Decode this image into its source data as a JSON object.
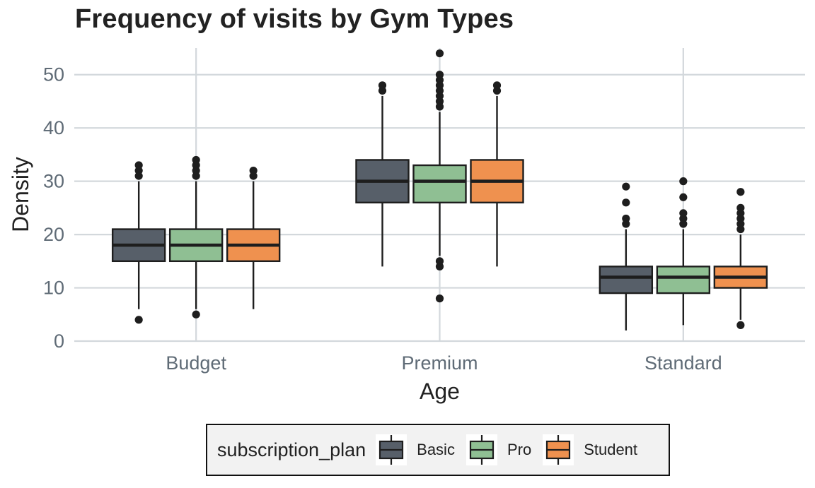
{
  "chart_data": {
    "type": "box",
    "title": "Frequency of visits by Gym Types",
    "xlabel": "Age",
    "ylabel": "Density",
    "categories": [
      "Budget",
      "Premium",
      "Standard"
    ],
    "y_ticks": [
      0,
      10,
      20,
      30,
      40,
      50
    ],
    "ylim": [
      0,
      55
    ],
    "grid": true,
    "legend": {
      "title": "subscription_plan",
      "position": "bottom"
    },
    "series": [
      {
        "name": "Basic",
        "color": "#575f69",
        "boxes": [
          {
            "category": "Budget",
            "q1": 15,
            "median": 18,
            "q3": 21,
            "whisker_low": 6,
            "whisker_high": 30,
            "outliers": [
              4,
              31,
              32,
              33
            ]
          },
          {
            "category": "Premium",
            "q1": 26,
            "median": 30,
            "q3": 34,
            "whisker_low": 14,
            "whisker_high": 46,
            "outliers": [
              47,
              48
            ]
          },
          {
            "category": "Standard",
            "q1": 9,
            "median": 12,
            "q3": 14,
            "whisker_low": 2,
            "whisker_high": 21,
            "outliers": [
              22,
              23,
              26,
              29
            ]
          }
        ]
      },
      {
        "name": "Pro",
        "color": "#8fbf93",
        "boxes": [
          {
            "category": "Budget",
            "q1": 15,
            "median": 18,
            "q3": 21,
            "whisker_low": 6,
            "whisker_high": 30,
            "outliers": [
              5,
              31,
              32,
              33,
              34
            ]
          },
          {
            "category": "Premium",
            "q1": 26,
            "median": 30,
            "q3": 33,
            "whisker_low": 16,
            "whisker_high": 43,
            "outliers": [
              8,
              14,
              15,
              44,
              45,
              46,
              47,
              48,
              49,
              50,
              54
            ]
          },
          {
            "category": "Standard",
            "q1": 9,
            "median": 12,
            "q3": 14,
            "whisker_low": 3,
            "whisker_high": 21,
            "outliers": [
              22,
              23,
              24,
              27,
              30
            ]
          }
        ]
      },
      {
        "name": "Student",
        "color": "#ef914f",
        "boxes": [
          {
            "category": "Budget",
            "q1": 15,
            "median": 18,
            "q3": 21,
            "whisker_low": 6,
            "whisker_high": 30,
            "outliers": [
              31,
              32
            ]
          },
          {
            "category": "Premium",
            "q1": 26,
            "median": 30,
            "q3": 34,
            "whisker_low": 14,
            "whisker_high": 46,
            "outliers": [
              47,
              48
            ]
          },
          {
            "category": "Standard",
            "q1": 10,
            "median": 12,
            "q3": 14,
            "whisker_low": 4,
            "whisker_high": 20,
            "outliers": [
              3,
              21,
              22,
              23,
              24,
              25,
              28
            ]
          }
        ]
      }
    ]
  }
}
